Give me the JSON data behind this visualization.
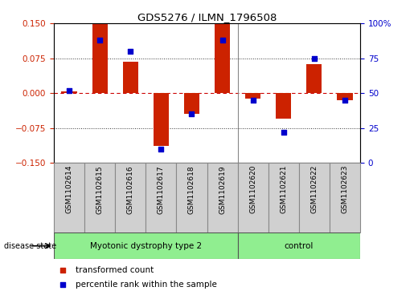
{
  "title": "GDS5276 / ILMN_1796508",
  "samples": [
    "GSM1102614",
    "GSM1102615",
    "GSM1102616",
    "GSM1102617",
    "GSM1102618",
    "GSM1102619",
    "GSM1102620",
    "GSM1102621",
    "GSM1102622",
    "GSM1102623"
  ],
  "red_values": [
    0.003,
    0.148,
    0.068,
    -0.113,
    -0.045,
    0.148,
    -0.012,
    -0.055,
    0.062,
    -0.015
  ],
  "blue_values": [
    52,
    88,
    80,
    10,
    35,
    88,
    45,
    22,
    75,
    45
  ],
  "ylim_left": [
    -0.15,
    0.15
  ],
  "ylim_right": [
    0,
    100
  ],
  "yticks_left": [
    -0.15,
    -0.075,
    0,
    0.075,
    0.15
  ],
  "yticks_right": [
    0,
    25,
    50,
    75,
    100
  ],
  "group1_label": "Myotonic dystrophy type 2",
  "group1_samples": 6,
  "group2_label": "control",
  "group2_samples": 4,
  "bar_color": "#cc2200",
  "dot_color": "#0000cc",
  "zero_line_color": "#cc0000",
  "grid_color": "#333333",
  "sample_bg_color": "#d0d0d0",
  "group_bg_color": "#90ee90",
  "legend_red_label": "transformed count",
  "legend_blue_label": "percentile rank within the sample",
  "bar_width": 0.5,
  "dot_size": 18
}
